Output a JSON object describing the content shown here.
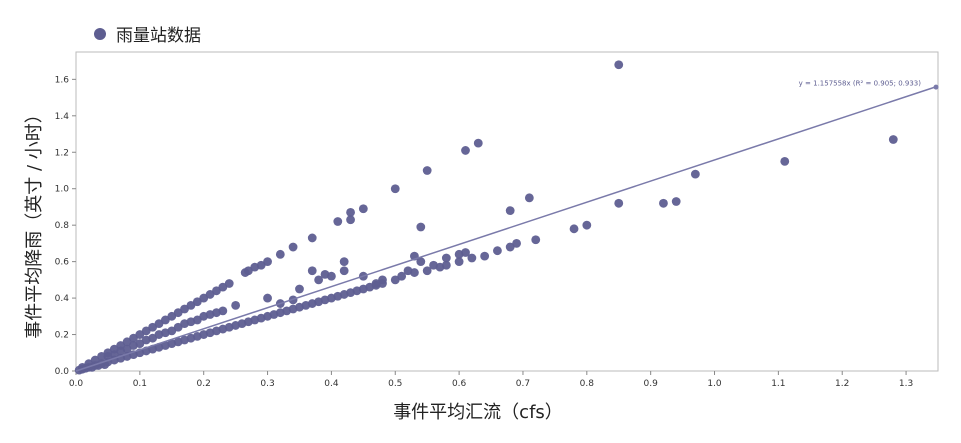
{
  "legend": {
    "label": "雨量站数据"
  },
  "colors": {
    "points": "#5e5e91",
    "fit_line": "#7a7aaa",
    "frame": "#bbbbbb",
    "grid": "#dddddd"
  },
  "chart_data": {
    "type": "scatter",
    "xlabel": "事件平均汇流（cfs）",
    "ylabel": "事件平均降雨（英寸 / 小时）",
    "xlim": [
      0,
      1.35
    ],
    "ylim": [
      0,
      1.75
    ],
    "xticks": [
      "0.0",
      "0.1",
      "0.2",
      "0.3",
      "0.4",
      "0.5",
      "0.6",
      "0.7",
      "0.8",
      "0.9",
      "1.0",
      "1.1",
      "1.2",
      "1.3"
    ],
    "yticks": [
      "0.0",
      "0.2",
      "0.4",
      "0.6",
      "0.8",
      "1.0",
      "1.2",
      "1.4",
      "1.6"
    ],
    "legend_position": "top-left",
    "grid": false,
    "series": [
      {
        "name": "雨量站数据",
        "points": [
          [
            0.005,
            0.005
          ],
          [
            0.01,
            0.01
          ],
          [
            0.015,
            0.015
          ],
          [
            0.02,
            0.02
          ],
          [
            0.025,
            0.02
          ],
          [
            0.03,
            0.03
          ],
          [
            0.035,
            0.03
          ],
          [
            0.04,
            0.04
          ],
          [
            0.045,
            0.035
          ],
          [
            0.05,
            0.05
          ],
          [
            0.01,
            0.02
          ],
          [
            0.02,
            0.04
          ],
          [
            0.03,
            0.06
          ],
          [
            0.04,
            0.08
          ],
          [
            0.05,
            0.1
          ],
          [
            0.06,
            0.12
          ],
          [
            0.07,
            0.14
          ],
          [
            0.08,
            0.16
          ],
          [
            0.09,
            0.18
          ],
          [
            0.1,
            0.2
          ],
          [
            0.11,
            0.22
          ],
          [
            0.12,
            0.24
          ],
          [
            0.13,
            0.26
          ],
          [
            0.14,
            0.28
          ],
          [
            0.15,
            0.3
          ],
          [
            0.16,
            0.32
          ],
          [
            0.17,
            0.34
          ],
          [
            0.18,
            0.36
          ],
          [
            0.19,
            0.38
          ],
          [
            0.2,
            0.4
          ],
          [
            0.21,
            0.42
          ],
          [
            0.22,
            0.44
          ],
          [
            0.23,
            0.46
          ],
          [
            0.24,
            0.48
          ],
          [
            0.265,
            0.54
          ],
          [
            0.27,
            0.55
          ],
          [
            0.28,
            0.57
          ],
          [
            0.29,
            0.58
          ],
          [
            0.3,
            0.6
          ],
          [
            0.05,
            0.08
          ],
          [
            0.06,
            0.09
          ],
          [
            0.07,
            0.11
          ],
          [
            0.08,
            0.12
          ],
          [
            0.09,
            0.14
          ],
          [
            0.1,
            0.15
          ],
          [
            0.11,
            0.17
          ],
          [
            0.12,
            0.18
          ],
          [
            0.13,
            0.2
          ],
          [
            0.14,
            0.21
          ],
          [
            0.15,
            0.22
          ],
          [
            0.16,
            0.24
          ],
          [
            0.17,
            0.26
          ],
          [
            0.18,
            0.27
          ],
          [
            0.19,
            0.28
          ],
          [
            0.2,
            0.3
          ],
          [
            0.21,
            0.31
          ],
          [
            0.22,
            0.32
          ],
          [
            0.23,
            0.33
          ],
          [
            0.25,
            0.36
          ],
          [
            0.06,
            0.06
          ],
          [
            0.07,
            0.07
          ],
          [
            0.08,
            0.08
          ],
          [
            0.09,
            0.09
          ],
          [
            0.1,
            0.1
          ],
          [
            0.11,
            0.11
          ],
          [
            0.12,
            0.12
          ],
          [
            0.13,
            0.13
          ],
          [
            0.14,
            0.14
          ],
          [
            0.15,
            0.15
          ],
          [
            0.16,
            0.16
          ],
          [
            0.17,
            0.17
          ],
          [
            0.18,
            0.18
          ],
          [
            0.19,
            0.19
          ],
          [
            0.2,
            0.2
          ],
          [
            0.21,
            0.21
          ],
          [
            0.22,
            0.22
          ],
          [
            0.23,
            0.23
          ],
          [
            0.24,
            0.24
          ],
          [
            0.25,
            0.25
          ],
          [
            0.26,
            0.26
          ],
          [
            0.27,
            0.27
          ],
          [
            0.28,
            0.28
          ],
          [
            0.29,
            0.29
          ],
          [
            0.3,
            0.3
          ],
          [
            0.31,
            0.31
          ],
          [
            0.32,
            0.32
          ],
          [
            0.33,
            0.33
          ],
          [
            0.34,
            0.34
          ],
          [
            0.35,
            0.35
          ],
          [
            0.36,
            0.36
          ],
          [
            0.37,
            0.37
          ],
          [
            0.38,
            0.38
          ],
          [
            0.39,
            0.39
          ],
          [
            0.4,
            0.4
          ],
          [
            0.41,
            0.41
          ],
          [
            0.42,
            0.42
          ],
          [
            0.43,
            0.43
          ],
          [
            0.44,
            0.44
          ],
          [
            0.45,
            0.45
          ],
          [
            0.46,
            0.46
          ],
          [
            0.47,
            0.47
          ],
          [
            0.48,
            0.48
          ],
          [
            0.5,
            0.5
          ],
          [
            0.51,
            0.52
          ],
          [
            0.53,
            0.54
          ],
          [
            0.55,
            0.55
          ],
          [
            0.57,
            0.57
          ],
          [
            0.58,
            0.58
          ],
          [
            0.6,
            0.6
          ],
          [
            0.62,
            0.62
          ],
          [
            0.64,
            0.63
          ],
          [
            0.66,
            0.66
          ],
          [
            0.68,
            0.68
          ],
          [
            0.69,
            0.7
          ],
          [
            0.3,
            0.4
          ],
          [
            0.32,
            0.37
          ],
          [
            0.34,
            0.39
          ],
          [
            0.35,
            0.45
          ],
          [
            0.38,
            0.5
          ],
          [
            0.4,
            0.52
          ],
          [
            0.42,
            0.55
          ],
          [
            0.45,
            0.52
          ],
          [
            0.48,
            0.5
          ],
          [
            0.52,
            0.55
          ],
          [
            0.54,
            0.6
          ],
          [
            0.56,
            0.58
          ],
          [
            0.58,
            0.62
          ],
          [
            0.6,
            0.64
          ],
          [
            0.61,
            0.65
          ],
          [
            0.53,
            0.63
          ],
          [
            0.47,
            0.48
          ],
          [
            0.32,
            0.64
          ],
          [
            0.34,
            0.68
          ],
          [
            0.37,
            0.73
          ],
          [
            0.37,
            0.55
          ],
          [
            0.39,
            0.53
          ],
          [
            0.42,
            0.6
          ],
          [
            0.41,
            0.82
          ],
          [
            0.43,
            0.83
          ],
          [
            0.43,
            0.87
          ],
          [
            0.45,
            0.89
          ],
          [
            0.5,
            1.0
          ],
          [
            0.54,
            0.79
          ],
          [
            0.55,
            1.1
          ],
          [
            0.61,
            1.21
          ],
          [
            0.63,
            1.25
          ],
          [
            0.68,
            0.88
          ],
          [
            0.71,
            0.95
          ],
          [
            0.72,
            0.72
          ],
          [
            0.78,
            0.78
          ],
          [
            0.8,
            0.8
          ],
          [
            0.85,
            0.92
          ],
          [
            0.85,
            1.68
          ],
          [
            0.92,
            0.92
          ],
          [
            0.94,
            0.93
          ],
          [
            0.97,
            1.08
          ],
          [
            1.11,
            1.15
          ],
          [
            1.28,
            1.27
          ]
        ]
      }
    ],
    "fit": {
      "slope": 1.157558,
      "label": "y = 1.157558x  (R² = 0.905; 0.933)"
    }
  }
}
